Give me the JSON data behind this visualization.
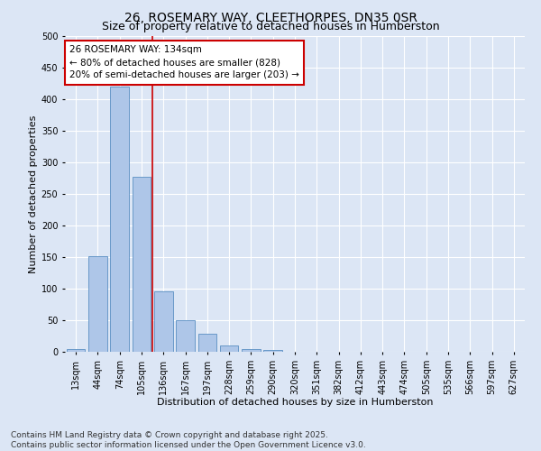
{
  "title_line1": "26, ROSEMARY WAY, CLEETHORPES, DN35 0SR",
  "title_line2": "Size of property relative to detached houses in Humberston",
  "xlabel": "Distribution of detached houses by size in Humberston",
  "ylabel": "Number of detached properties",
  "categories": [
    "13sqm",
    "44sqm",
    "74sqm",
    "105sqm",
    "136sqm",
    "167sqm",
    "197sqm",
    "228sqm",
    "259sqm",
    "290sqm",
    "320sqm",
    "351sqm",
    "382sqm",
    "412sqm",
    "443sqm",
    "474sqm",
    "505sqm",
    "535sqm",
    "566sqm",
    "597sqm",
    "627sqm"
  ],
  "values": [
    5,
    152,
    420,
    277,
    96,
    50,
    28,
    10,
    5,
    3,
    0,
    0,
    0,
    0,
    0,
    0,
    0,
    0,
    0,
    0,
    0
  ],
  "bar_color": "#aec6e8",
  "bar_edge_color": "#5a8fc2",
  "vline_x": 3.5,
  "vline_color": "#cc0000",
  "annotation_title": "26 ROSEMARY WAY: 134sqm",
  "annotation_line1": "← 80% of detached houses are smaller (828)",
  "annotation_line2": "20% of semi-detached houses are larger (203) →",
  "annotation_box_color": "#ffffff",
  "annotation_box_edge": "#cc0000",
  "background_color": "#dce6f5",
  "grid_color": "#ffffff",
  "ylim": [
    0,
    500
  ],
  "yticks": [
    0,
    50,
    100,
    150,
    200,
    250,
    300,
    350,
    400,
    450,
    500
  ],
  "footer_line1": "Contains HM Land Registry data © Crown copyright and database right 2025.",
  "footer_line2": "Contains public sector information licensed under the Open Government Licence v3.0.",
  "title1_fontsize": 10,
  "title2_fontsize": 9,
  "axis_label_fontsize": 8,
  "tick_fontsize": 7,
  "annotation_fontsize": 7.5,
  "footer_fontsize": 6.5
}
